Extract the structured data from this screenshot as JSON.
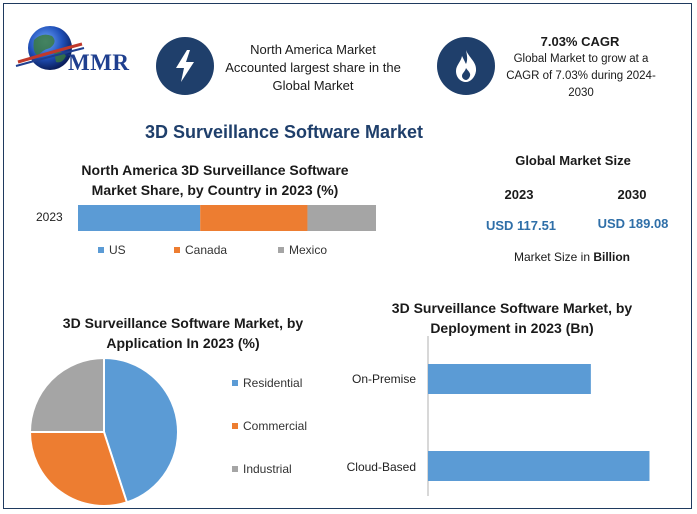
{
  "header": {
    "logo_text": "MMR",
    "card1_text": "North America Market Accounted largest share in the Global Market",
    "card2_title": "7.03% CAGR",
    "card2_text": "Global Market to grow at a CAGR of 7.03% during 2024-2030"
  },
  "title": "3D Surveillance Software Market",
  "colors": {
    "us": "#5b9bd5",
    "canada": "#ed7d31",
    "mexico": "#a5a5a5",
    "navy": "#1f3f6b",
    "bar_blue": "#5b9bd5",
    "value_blue": "#2f6fa8"
  },
  "market_size": {
    "title": "Global Market Size",
    "year1": "2023",
    "year2": "2030",
    "value1": "USD 117.51",
    "value2": "USD 189.08",
    "note_prefix": "Market Size in",
    "note_unit": "Billion"
  },
  "chart_data": [
    {
      "type": "bar",
      "orientation": "horizontal-stacked",
      "title": "North America 3D Surveillance Software Market Share, by Country in 2023 (%)",
      "categories": [
        "2023"
      ],
      "series": [
        {
          "name": "US",
          "values": [
            41
          ]
        },
        {
          "name": "Canada",
          "values": [
            36
          ]
        },
        {
          "name": "Mexico",
          "values": [
            23
          ]
        }
      ],
      "xlim": [
        0,
        100
      ],
      "legend": "bottom"
    },
    {
      "type": "pie",
      "title": "3D Surveillance Software Market, by Application In 2023 (%)",
      "labels": [
        "Residential",
        "Commercial",
        "Industrial"
      ],
      "values": [
        45,
        30,
        25
      ],
      "legend": "right"
    },
    {
      "type": "bar",
      "orientation": "horizontal",
      "title": "3D Surveillance Software Market, by Deployment in 2023 (Bn)",
      "categories": [
        "On-Premise",
        "Cloud-Based"
      ],
      "values": [
        50,
        68
      ],
      "xlim": [
        0,
        70
      ],
      "grid": false
    }
  ]
}
